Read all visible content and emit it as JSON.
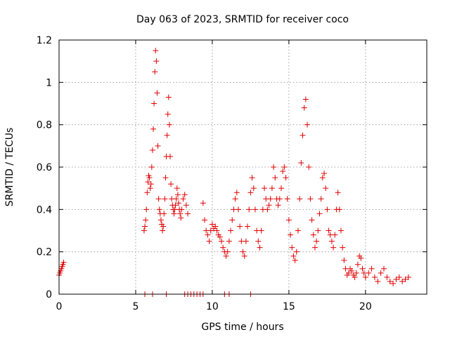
{
  "chart_data": {
    "type": "scatter",
    "title": "Day 063 of 2023, SRMTID for receiver coco",
    "xlabel": "GPS time / hours",
    "ylabel": "SRMTID / TECUs",
    "xlim": [
      0,
      24
    ],
    "ylim": [
      0,
      1.2
    ],
    "xticks": [
      0,
      5,
      10,
      15,
      20
    ],
    "xtick_labels": [
      "0",
      "5",
      "10",
      "15",
      "20"
    ],
    "yticks": [
      0,
      0.2,
      0.4,
      0.6,
      0.8,
      1.0,
      1.2
    ],
    "ytick_labels": [
      "0",
      "0.2",
      "0.4",
      "0.6",
      "0.8",
      "1",
      "1.2"
    ],
    "grid": true,
    "legend": "none",
    "marker": "plus",
    "color": "#e00000",
    "series": [
      {
        "name": "SRMTID",
        "x": [
          0.0,
          0.05,
          0.1,
          0.15,
          0.2,
          0.25,
          0.3,
          5.55,
          5.6,
          5.65,
          5.7,
          5.75,
          5.8,
          5.85,
          5.9,
          5.95,
          6.0,
          6.05,
          6.1,
          6.15,
          6.2,
          6.25,
          6.3,
          6.35,
          6.4,
          6.45,
          6.5,
          6.55,
          6.6,
          6.65,
          6.7,
          6.75,
          6.8,
          6.85,
          6.9,
          6.95,
          7.0,
          7.05,
          7.1,
          7.15,
          7.2,
          7.25,
          7.3,
          7.35,
          7.4,
          7.45,
          7.5,
          7.55,
          7.6,
          7.65,
          7.7,
          7.75,
          7.8,
          7.85,
          7.9,
          7.95,
          8.0,
          8.1,
          8.2,
          8.3,
          8.4,
          9.4,
          9.5,
          9.6,
          9.7,
          9.8,
          9.9,
          10.0,
          10.1,
          10.2,
          10.3,
          10.4,
          10.5,
          10.6,
          10.7,
          10.8,
          10.9,
          11.0,
          11.1,
          11.2,
          11.3,
          11.4,
          11.5,
          11.6,
          11.7,
          11.8,
          11.9,
          12.0,
          12.1,
          12.2,
          12.3,
          12.4,
          12.5,
          12.6,
          12.7,
          12.8,
          12.9,
          13.0,
          13.1,
          13.2,
          13.3,
          13.4,
          13.5,
          13.6,
          13.7,
          13.8,
          13.9,
          14.0,
          14.1,
          14.2,
          14.3,
          14.4,
          14.5,
          14.6,
          14.7,
          14.8,
          14.9,
          15.0,
          15.1,
          15.2,
          15.3,
          15.4,
          15.5,
          15.6,
          15.7,
          15.8,
          15.9,
          16.0,
          16.1,
          16.2,
          16.3,
          16.4,
          16.5,
          16.6,
          16.7,
          16.8,
          16.9,
          17.0,
          17.1,
          17.2,
          17.3,
          17.4,
          17.5,
          17.6,
          17.7,
          17.8,
          17.9,
          18.0,
          18.1,
          18.2,
          18.3,
          18.4,
          18.5,
          18.6,
          18.7,
          18.8,
          18.9,
          19.0,
          19.1,
          19.2,
          19.3,
          19.4,
          19.5,
          19.6,
          19.7,
          19.8,
          19.9,
          20.0,
          20.2,
          20.4,
          20.6,
          20.8,
          21.0,
          21.2,
          21.4,
          21.6,
          21.8,
          22.0,
          22.2,
          22.4,
          22.6,
          22.8,
          5.6,
          6.1,
          7.0,
          8.2,
          8.4,
          8.6,
          8.8,
          9.0,
          9.2,
          9.4,
          10.8,
          11.1,
          12.5
        ],
        "y": [
          0.09,
          0.1,
          0.11,
          0.12,
          0.13,
          0.14,
          0.15,
          0.3,
          0.32,
          0.35,
          0.4,
          0.48,
          0.53,
          0.56,
          0.55,
          0.5,
          0.52,
          0.6,
          0.68,
          0.78,
          0.9,
          1.05,
          1.15,
          1.1,
          0.95,
          0.7,
          0.45,
          0.4,
          0.38,
          0.35,
          0.33,
          0.3,
          0.32,
          0.38,
          0.45,
          0.55,
          0.65,
          0.75,
          0.85,
          0.93,
          0.8,
          0.65,
          0.52,
          0.45,
          0.42,
          0.4,
          0.38,
          0.4,
          0.42,
          0.45,
          0.5,
          0.47,
          0.43,
          0.4,
          0.38,
          0.36,
          0.4,
          0.45,
          0.47,
          0.42,
          0.38,
          0.43,
          0.35,
          0.3,
          0.28,
          0.25,
          0.3,
          0.33,
          0.31,
          0.32,
          0.3,
          0.28,
          0.27,
          0.25,
          0.22,
          0.2,
          0.18,
          0.2,
          0.25,
          0.3,
          0.35,
          0.4,
          0.45,
          0.48,
          0.4,
          0.32,
          0.25,
          0.2,
          0.18,
          0.25,
          0.32,
          0.4,
          0.48,
          0.55,
          0.5,
          0.4,
          0.3,
          0.25,
          0.22,
          0.3,
          0.4,
          0.5,
          0.45,
          0.4,
          0.42,
          0.45,
          0.5,
          0.6,
          0.55,
          0.45,
          0.42,
          0.45,
          0.5,
          0.58,
          0.6,
          0.55,
          0.45,
          0.35,
          0.28,
          0.22,
          0.18,
          0.16,
          0.2,
          0.3,
          0.45,
          0.62,
          0.75,
          0.88,
          0.92,
          0.8,
          0.6,
          0.45,
          0.35,
          0.28,
          0.22,
          0.25,
          0.3,
          0.38,
          0.45,
          0.55,
          0.57,
          0.5,
          0.4,
          0.3,
          0.28,
          0.25,
          0.22,
          0.28,
          0.4,
          0.48,
          0.4,
          0.3,
          0.22,
          0.16,
          0.12,
          0.09,
          0.1,
          0.12,
          0.11,
          0.09,
          0.08,
          0.1,
          0.14,
          0.18,
          0.17,
          0.12,
          0.1,
          0.08,
          0.1,
          0.12,
          0.08,
          0.06,
          0.1,
          0.12,
          0.08,
          0.06,
          0.05,
          0.07,
          0.08,
          0.06,
          0.07,
          0.08,
          0.0,
          0.0,
          0.0,
          0.0,
          0.0,
          0.0,
          0.0,
          0.0,
          0.0,
          0.0,
          0.0,
          0.0,
          0.0
        ]
      }
    ]
  }
}
